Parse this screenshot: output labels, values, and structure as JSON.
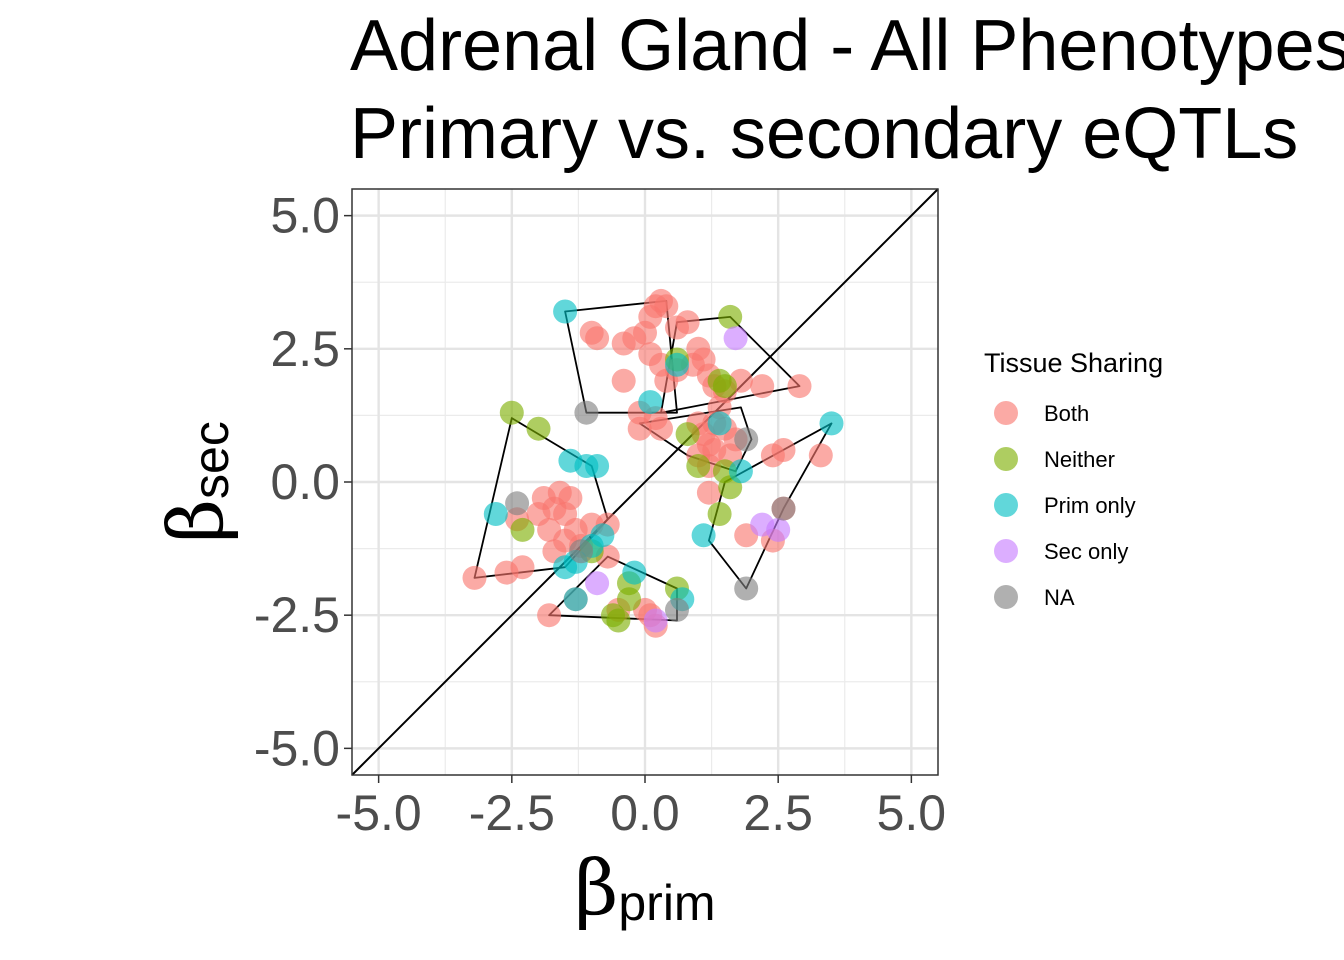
{
  "chart_data": {
    "type": "scatter",
    "title": [
      "Adrenal Gland - All Phenotypes",
      "Primary vs. secondary eQTLs"
    ],
    "xlabel": {
      "symbol": "β",
      "subscript": "prim"
    },
    "ylabel": {
      "symbol": "β",
      "subscript": "sec"
    },
    "xlim": [
      -5.5,
      5.5
    ],
    "ylim": [
      -5.5,
      5.5
    ],
    "x_ticks": [
      -5.0,
      -2.5,
      0.0,
      2.5,
      5.0
    ],
    "y_ticks": [
      -5.0,
      -2.5,
      0.0,
      2.5,
      5.0
    ],
    "x_tick_labels": [
      "-5.0",
      "-2.5",
      "0.0",
      "2.5",
      "5.0"
    ],
    "y_tick_labels": [
      "-5.0",
      "-2.5",
      "0.0",
      "2.5",
      "5.0"
    ],
    "grid": true,
    "reference_line": "y = x",
    "legend": {
      "title": "Tissue Sharing",
      "placement": "right",
      "entries": [
        {
          "label": "Both",
          "color": "#F8766D"
        },
        {
          "label": "Neither",
          "color": "#7CAE00"
        },
        {
          "label": "Prim only",
          "color": "#00BFC4"
        },
        {
          "label": "Sec only",
          "color": "#C77CFF"
        },
        {
          "label": "NA",
          "color": "#808080"
        }
      ]
    },
    "series": [
      {
        "name": "Both",
        "color": "#F8766D",
        "points": [
          [
            -1.0,
            2.8
          ],
          [
            -0.9,
            2.7
          ],
          [
            -0.4,
            2.6
          ],
          [
            -0.4,
            1.9
          ],
          [
            -0.2,
            2.7
          ],
          [
            0.0,
            2.8
          ],
          [
            0.1,
            3.1
          ],
          [
            0.2,
            3.3
          ],
          [
            0.3,
            3.4
          ],
          [
            0.4,
            3.3
          ],
          [
            0.6,
            2.9
          ],
          [
            0.8,
            3.0
          ],
          [
            0.1,
            2.4
          ],
          [
            0.3,
            2.2
          ],
          [
            0.4,
            1.9
          ],
          [
            0.6,
            2.1
          ],
          [
            0.9,
            2.2
          ],
          [
            1.0,
            2.5
          ],
          [
            1.1,
            2.3
          ],
          [
            1.2,
            2.0
          ],
          [
            1.3,
            1.8
          ],
          [
            1.5,
            1.7
          ],
          [
            1.8,
            1.9
          ],
          [
            2.2,
            1.8
          ],
          [
            2.9,
            1.8
          ],
          [
            -0.1,
            1.3
          ],
          [
            0.2,
            1.2
          ],
          [
            0.3,
            1.0
          ],
          [
            -0.1,
            1.0
          ],
          [
            1.0,
            1.1
          ],
          [
            1.1,
            0.9
          ],
          [
            1.2,
            0.7
          ],
          [
            1.3,
            1.1
          ],
          [
            1.4,
            1.4
          ],
          [
            1.5,
            1.0
          ],
          [
            1.0,
            0.5
          ],
          [
            1.2,
            0.3
          ],
          [
            1.3,
            0.6
          ],
          [
            1.6,
            0.5
          ],
          [
            1.7,
            0.8
          ],
          [
            1.2,
            -0.2
          ],
          [
            2.4,
            0.5
          ],
          [
            2.6,
            0.6
          ],
          [
            3.3,
            0.5
          ],
          [
            1.9,
            -1.0
          ],
          [
            2.4,
            -1.1
          ],
          [
            2.6,
            -0.5
          ],
          [
            -3.2,
            -1.8
          ],
          [
            -2.6,
            -1.7
          ],
          [
            -2.3,
            -1.6
          ],
          [
            -2.4,
            -0.7
          ],
          [
            -2.0,
            -0.6
          ],
          [
            -1.9,
            -0.3
          ],
          [
            -1.8,
            -0.9
          ],
          [
            -1.7,
            -0.5
          ],
          [
            -1.6,
            -0.2
          ],
          [
            -1.5,
            -0.6
          ],
          [
            -1.4,
            -0.3
          ],
          [
            -1.3,
            -0.9
          ],
          [
            -1.5,
            -1.1
          ],
          [
            -1.7,
            -1.3
          ],
          [
            -1.2,
            -1.2
          ],
          [
            -1.0,
            -0.8
          ],
          [
            -0.7,
            -0.8
          ],
          [
            -0.7,
            -1.4
          ],
          [
            -1.8,
            -2.5
          ],
          [
            -1.3,
            -2.2
          ],
          [
            -0.5,
            -2.4
          ],
          [
            0.0,
            -2.4
          ],
          [
            0.2,
            -2.7
          ],
          [
            0.1,
            -2.5
          ]
        ]
      },
      {
        "name": "Neither",
        "color": "#7CAE00",
        "points": [
          [
            -2.5,
            1.3
          ],
          [
            -2.0,
            1.0
          ],
          [
            1.6,
            3.1
          ],
          [
            0.6,
            2.3
          ],
          [
            1.4,
            1.9
          ],
          [
            1.5,
            1.8
          ],
          [
            0.8,
            0.9
          ],
          [
            1.0,
            0.3
          ],
          [
            1.5,
            0.2
          ],
          [
            1.6,
            -0.1
          ],
          [
            1.4,
            -0.6
          ],
          [
            -2.3,
            -0.9
          ],
          [
            -0.6,
            -2.5
          ],
          [
            -0.5,
            -2.6
          ],
          [
            -0.3,
            -2.2
          ],
          [
            -0.3,
            -1.9
          ],
          [
            0.6,
            -2.0
          ],
          [
            -1.0,
            -1.3
          ]
        ]
      },
      {
        "name": "Prim only",
        "color": "#00BFC4",
        "points": [
          [
            -1.5,
            3.2
          ],
          [
            0.1,
            1.5
          ],
          [
            0.6,
            2.2
          ],
          [
            1.4,
            1.1
          ],
          [
            1.8,
            0.2
          ],
          [
            3.5,
            1.1
          ],
          [
            -1.4,
            0.4
          ],
          [
            -1.1,
            0.3
          ],
          [
            -0.9,
            0.3
          ],
          [
            -2.8,
            -0.6
          ],
          [
            -0.8,
            -1.0
          ],
          [
            -1.3,
            -1.5
          ],
          [
            -1.5,
            -1.6
          ],
          [
            -1.3,
            -2.2
          ],
          [
            -0.2,
            -1.7
          ],
          [
            0.7,
            -2.2
          ],
          [
            1.1,
            -1.0
          ],
          [
            -1.0,
            -1.2
          ]
        ]
      },
      {
        "name": "Sec only",
        "color": "#C77CFF",
        "points": [
          [
            1.7,
            2.7
          ],
          [
            2.2,
            -0.8
          ],
          [
            2.5,
            -0.9
          ],
          [
            -0.9,
            -1.9
          ],
          [
            0.2,
            -2.6
          ]
        ]
      },
      {
        "name": "NA",
        "color": "#808080",
        "points": [
          [
            -1.1,
            1.3
          ],
          [
            1.9,
            0.8
          ],
          [
            -2.4,
            -0.4
          ],
          [
            1.9,
            -2.0
          ],
          [
            0.6,
            -2.4
          ],
          [
            2.6,
            -0.5
          ],
          [
            -1.2,
            -1.3
          ]
        ]
      }
    ],
    "hulls": [
      [
        [
          -1.5,
          3.2
        ],
        [
          0.4,
          3.4
        ],
        [
          0.6,
          1.3
        ],
        [
          -1.1,
          1.3
        ]
      ],
      [
        [
          0.6,
          3.0
        ],
        [
          1.6,
          3.1
        ],
        [
          2.9,
          1.8
        ],
        [
          0.3,
          1.3
        ]
      ],
      [
        [
          -0.1,
          1.1
        ],
        [
          1.8,
          1.4
        ],
        [
          2.0,
          0.8
        ],
        [
          1.7,
          0.2
        ],
        [
          0.8,
          0.5
        ]
      ],
      [
        [
          -2.5,
          1.2
        ],
        [
          -1.0,
          0.3
        ],
        [
          -0.7,
          -0.7
        ],
        [
          -1.5,
          -1.6
        ],
        [
          -3.2,
          -1.8
        ]
      ],
      [
        [
          -0.7,
          -1.4
        ],
        [
          0.6,
          -2.0
        ],
        [
          0.6,
          -2.6
        ],
        [
          -1.8,
          -2.5
        ]
      ],
      [
        [
          1.2,
          -1.1
        ],
        [
          1.9,
          -2.0
        ],
        [
          2.6,
          -0.5
        ],
        [
          3.5,
          1.1
        ],
        [
          1.5,
          0.0
        ]
      ]
    ]
  }
}
